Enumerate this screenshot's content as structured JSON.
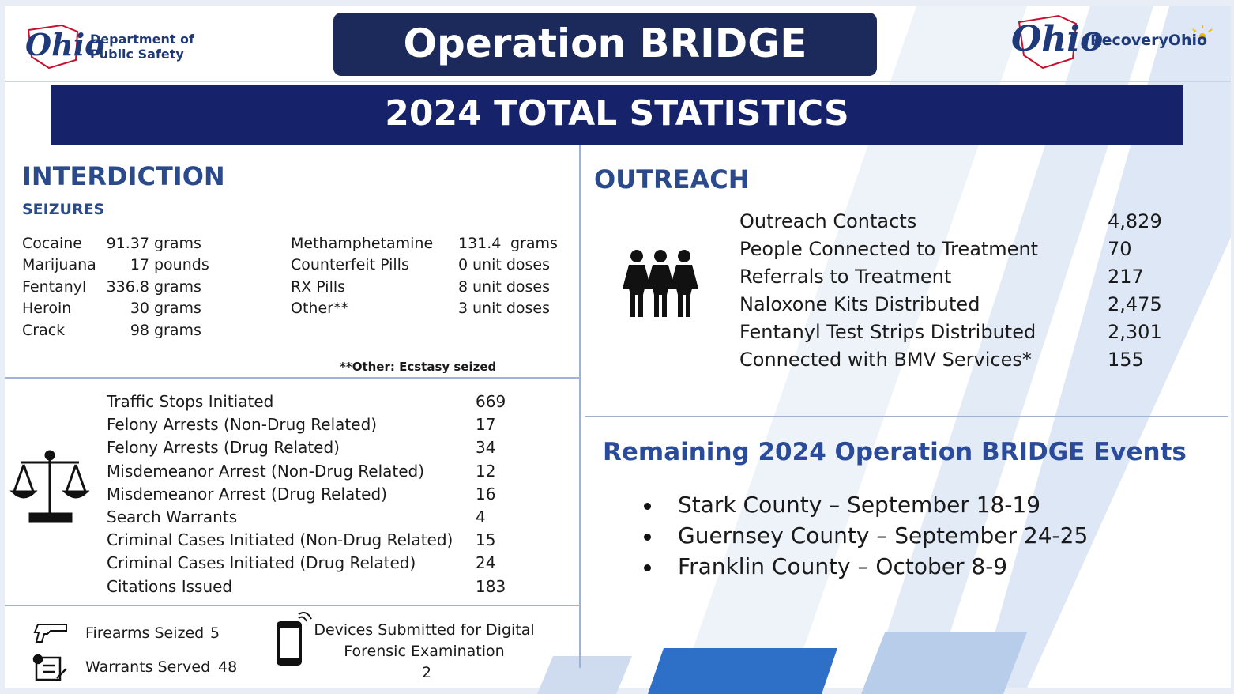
{
  "header": {
    "left_logo": {
      "mark": "Ohio",
      "lines": [
        "Department of",
        "Public Safety"
      ]
    },
    "title": "Operation BRIDGE",
    "right_logo": {
      "mark": "Ohio",
      "text": "RecoveryOhio"
    }
  },
  "banner": "2024 TOTAL STATISTICS",
  "interdiction": {
    "heading": "INTERDICTION",
    "subheading": "SEIZURES",
    "seizures_left": [
      {
        "name": "Cocaine",
        "amount": "91.37",
        "unit": "grams"
      },
      {
        "name": "Marijuana",
        "amount": "17",
        "unit": "pounds"
      },
      {
        "name": "Fentanyl",
        "amount": "336.8",
        "unit": "grams"
      },
      {
        "name": "Heroin",
        "amount": "30",
        "unit": "grams"
      },
      {
        "name": "Crack",
        "amount": "98",
        "unit": "grams"
      }
    ],
    "seizures_right": [
      {
        "name": "Methamphetamine",
        "amount": "131.4",
        "unit": "grams"
      },
      {
        "name": "Counterfeit Pills",
        "amount": "0",
        "unit": "unit doses"
      },
      {
        "name": "RX Pills",
        "amount": "8",
        "unit": "unit doses"
      },
      {
        "name": "Other**",
        "amount": "3",
        "unit": "unit doses"
      }
    ],
    "footnote": "**Other: Ecstasy seized",
    "enforcement": [
      {
        "label": "Traffic Stops Initiated",
        "value": "669"
      },
      {
        "label": "Felony Arrests (Non-Drug Related)",
        "value": "17"
      },
      {
        "label": "Felony Arrests (Drug Related)",
        "value": "34"
      },
      {
        "label": "Misdemeanor Arrest (Non-Drug Related)",
        "value": "12"
      },
      {
        "label": "Misdemeanor Arrest (Drug Related)",
        "value": "16"
      },
      {
        "label": "Search Warrants",
        "value": "4"
      },
      {
        "label": "Criminal Cases Initiated (Non-Drug Related)",
        "value": "15"
      },
      {
        "label": "Criminal Cases Initiated (Drug Related)",
        "value": "24"
      },
      {
        "label": "Citations Issued",
        "value": "183"
      }
    ],
    "firearms": {
      "label": "Firearms Seized",
      "value": "5"
    },
    "warrants": {
      "label": "Warrants Served",
      "value": "48"
    },
    "devices": {
      "lines": [
        "Devices Submitted for Digital",
        "Forensic Examination"
      ],
      "value": "2"
    }
  },
  "outreach": {
    "heading": "OUTREACH",
    "rows": [
      {
        "label": "Outreach Contacts",
        "value": "4,829"
      },
      {
        "label": "People Connected to Treatment",
        "value": "70"
      },
      {
        "label": "Referrals to Treatment",
        "value": "217"
      },
      {
        "label": "Naloxone Kits Distributed",
        "value": "2,475"
      },
      {
        "label": "Fentanyl Test Strips Distributed",
        "value": "2,301"
      },
      {
        "label": "Connected with BMV Services*",
        "value": "155"
      }
    ]
  },
  "events": {
    "heading": "Remaining 2024 Operation BRIDGE Events",
    "items": [
      "Stark County – September 18-19",
      "Guernsey County – September 24-25",
      "Franklin County – October 8-9"
    ]
  }
}
